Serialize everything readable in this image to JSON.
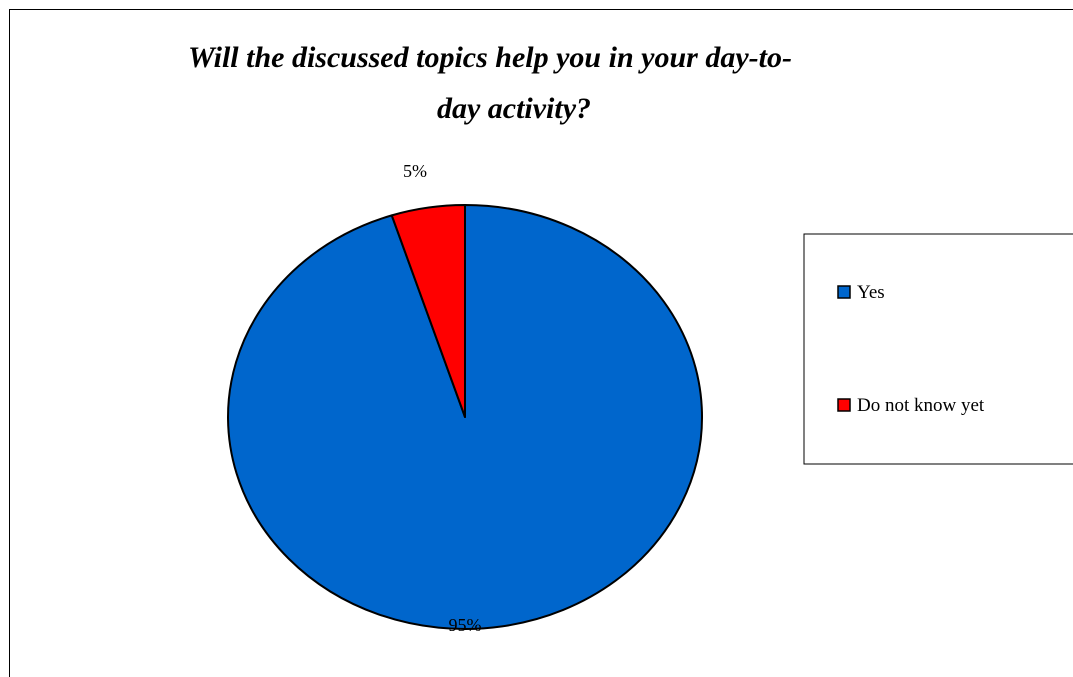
{
  "chart_data": {
    "type": "pie",
    "title_lines": [
      "Will the discussed topics help you in your day-to-",
      "day activity?"
    ],
    "categories": [
      "Yes",
      "Do not know yet"
    ],
    "values": [
      95,
      5
    ],
    "data_labels": [
      "95%",
      "5%"
    ],
    "colors": [
      "#0066CC",
      "#FF0000"
    ],
    "legend_position": "right"
  }
}
